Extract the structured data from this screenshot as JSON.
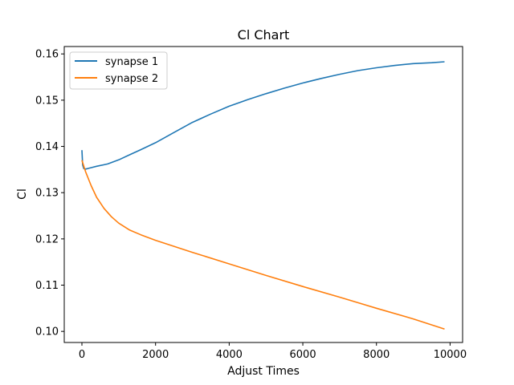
{
  "chart_data": {
    "type": "line",
    "title": "Cl Chart",
    "xlabel": "Adjust Times",
    "ylabel": "Cl",
    "xlim": [
      -480,
      10340
    ],
    "ylim": [
      0.0976,
      0.1616
    ],
    "x_ticks": [
      0,
      2000,
      4000,
      6000,
      8000,
      10000
    ],
    "x_tick_labels": [
      "0",
      "2000",
      "4000",
      "6000",
      "8000",
      "10000"
    ],
    "y_ticks": [
      0.1,
      0.11,
      0.12,
      0.13,
      0.14,
      0.15,
      0.16
    ],
    "y_tick_labels": [
      "0.10",
      "0.11",
      "0.12",
      "0.13",
      "0.14",
      "0.15",
      "0.16"
    ],
    "grid": false,
    "legend_position": "upper-left",
    "series": [
      {
        "name": "synapse 1",
        "color": "#1f77b4",
        "x": [
          0,
          20,
          50,
          100,
          200,
          400,
          700,
          1000,
          1300,
          1600,
          2000,
          2500,
          3000,
          3500,
          4000,
          4500,
          5000,
          5500,
          6000,
          6500,
          7000,
          7500,
          8000,
          8500,
          9000,
          9500,
          9850
        ],
        "y": [
          0.1392,
          0.136,
          0.1352,
          0.1351,
          0.1353,
          0.1357,
          0.1362,
          0.1371,
          0.1382,
          0.1393,
          0.1408,
          0.143,
          0.1452,
          0.147,
          0.1487,
          0.1501,
          0.1514,
          0.1526,
          0.1537,
          0.1547,
          0.1556,
          0.1564,
          0.157,
          0.1575,
          0.1579,
          0.1581,
          0.1583
        ]
      },
      {
        "name": "synapse 2",
        "color": "#ff7f0e",
        "x": [
          0,
          100,
          250,
          400,
          600,
          800,
          1000,
          1300,
          1600,
          2000,
          2500,
          3000,
          4000,
          5000,
          6000,
          7000,
          8000,
          9000,
          9850
        ],
        "y": [
          0.137,
          0.1345,
          0.1315,
          0.129,
          0.1266,
          0.1248,
          0.1234,
          0.1219,
          0.1209,
          0.1197,
          0.1184,
          0.1171,
          0.1146,
          0.1121,
          0.1097,
          0.1074,
          0.105,
          0.1027,
          0.1005
        ]
      }
    ]
  }
}
